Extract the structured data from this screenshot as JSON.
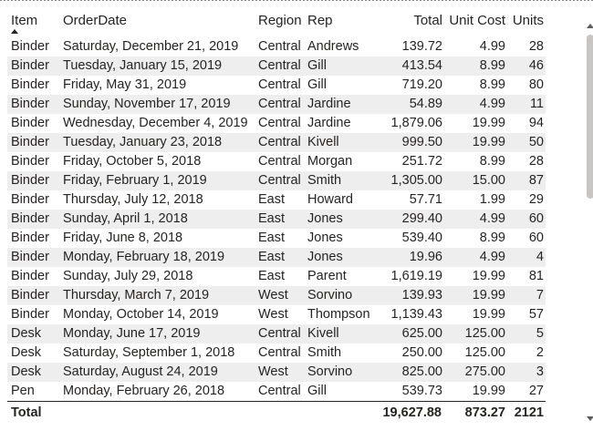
{
  "columns": {
    "item": "Item",
    "order_date": "OrderDate",
    "region": "Region",
    "rep": "Rep",
    "total": "Total",
    "unit_cost": "Unit Cost",
    "units": "Units"
  },
  "rows": [
    {
      "item": "Binder",
      "order_date": "Saturday, December 21, 2019",
      "region": "Central",
      "rep": "Andrews",
      "total": "139.72",
      "unit_cost": "4.99",
      "units": "28"
    },
    {
      "item": "Binder",
      "order_date": "Tuesday, January 15, 2019",
      "region": "Central",
      "rep": "Gill",
      "total": "413.54",
      "unit_cost": "8.99",
      "units": "46"
    },
    {
      "item": "Binder",
      "order_date": "Friday, May 31, 2019",
      "region": "Central",
      "rep": "Gill",
      "total": "719.20",
      "unit_cost": "8.99",
      "units": "80"
    },
    {
      "item": "Binder",
      "order_date": "Sunday, November 17, 2019",
      "region": "Central",
      "rep": "Jardine",
      "total": "54.89",
      "unit_cost": "4.99",
      "units": "11"
    },
    {
      "item": "Binder",
      "order_date": "Wednesday, December 4, 2019",
      "region": "Central",
      "rep": "Jardine",
      "total": "1,879.06",
      "unit_cost": "19.99",
      "units": "94"
    },
    {
      "item": "Binder",
      "order_date": "Tuesday, January 23, 2018",
      "region": "Central",
      "rep": "Kivell",
      "total": "999.50",
      "unit_cost": "19.99",
      "units": "50"
    },
    {
      "item": "Binder",
      "order_date": "Friday, October 5, 2018",
      "region": "Central",
      "rep": "Morgan",
      "total": "251.72",
      "unit_cost": "8.99",
      "units": "28"
    },
    {
      "item": "Binder",
      "order_date": "Friday, February 1, 2019",
      "region": "Central",
      "rep": "Smith",
      "total": "1,305.00",
      "unit_cost": "15.00",
      "units": "87"
    },
    {
      "item": "Binder",
      "order_date": "Thursday, July 12, 2018",
      "region": "East",
      "rep": "Howard",
      "total": "57.71",
      "unit_cost": "1.99",
      "units": "29"
    },
    {
      "item": "Binder",
      "order_date": "Sunday, April 1, 2018",
      "region": "East",
      "rep": "Jones",
      "total": "299.40",
      "unit_cost": "4.99",
      "units": "60"
    },
    {
      "item": "Binder",
      "order_date": "Friday, June 8, 2018",
      "region": "East",
      "rep": "Jones",
      "total": "539.40",
      "unit_cost": "8.99",
      "units": "60"
    },
    {
      "item": "Binder",
      "order_date": "Monday, February 18, 2019",
      "region": "East",
      "rep": "Jones",
      "total": "19.96",
      "unit_cost": "4.99",
      "units": "4"
    },
    {
      "item": "Binder",
      "order_date": "Sunday, July 29, 2018",
      "region": "East",
      "rep": "Parent",
      "total": "1,619.19",
      "unit_cost": "19.99",
      "units": "81"
    },
    {
      "item": "Binder",
      "order_date": "Thursday, March 7, 2019",
      "region": "West",
      "rep": "Sorvino",
      "total": "139.93",
      "unit_cost": "19.99",
      "units": "7"
    },
    {
      "item": "Binder",
      "order_date": "Monday, October 14, 2019",
      "region": "West",
      "rep": "Thompson",
      "total": "1,139.43",
      "unit_cost": "19.99",
      "units": "57"
    },
    {
      "item": "Desk",
      "order_date": "Monday, June 17, 2019",
      "region": "Central",
      "rep": "Kivell",
      "total": "625.00",
      "unit_cost": "125.00",
      "units": "5"
    },
    {
      "item": "Desk",
      "order_date": "Saturday, September 1, 2018",
      "region": "Central",
      "rep": "Smith",
      "total": "250.00",
      "unit_cost": "125.00",
      "units": "2"
    },
    {
      "item": "Desk",
      "order_date": "Saturday, August 24, 2019",
      "region": "West",
      "rep": "Sorvino",
      "total": "825.00",
      "unit_cost": "275.00",
      "units": "3"
    },
    {
      "item": "Pen",
      "order_date": "Monday, February 26, 2018",
      "region": "Central",
      "rep": "Gill",
      "total": "539.73",
      "unit_cost": "19.99",
      "units": "27"
    }
  ],
  "totals": {
    "label": "Total",
    "total": "19,627.88",
    "unit_cost": "873.27",
    "units": "2121"
  },
  "sort": {
    "column": "item",
    "direction": "ascending",
    "icon": "sort-ascending-icon"
  },
  "colors": {
    "band": "#eeeeee",
    "text": "#252423",
    "scroll_thumb": "#c8c6c4"
  }
}
